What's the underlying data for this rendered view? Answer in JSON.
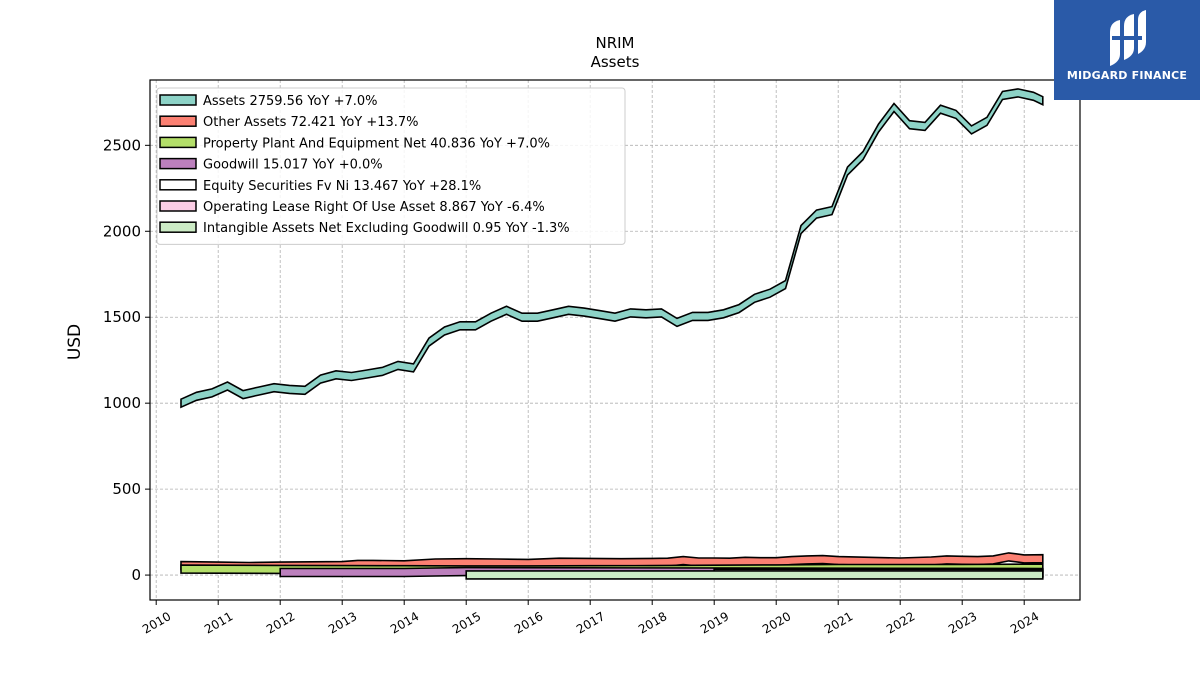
{
  "chart_data": {
    "type": "area",
    "title": "NRIM",
    "subtitle": "Assets",
    "xlabel": "",
    "ylabel": "USD",
    "xlim": [
      2009.9,
      2024.9
    ],
    "ylim": [
      -145,
      2880
    ],
    "x_ticks": [
      2010,
      2011,
      2012,
      2013,
      2014,
      2015,
      2016,
      2017,
      2018,
      2019,
      2020,
      2021,
      2022,
      2023,
      2024
    ],
    "y_ticks": [
      0,
      500,
      1000,
      1500,
      2000,
      2500
    ],
    "grid": true,
    "legend_position": "top-left",
    "series": [
      {
        "name": "Assets",
        "legend": "Assets  2759.56 YoY +7.0%",
        "color": "#8dd3c7",
        "x": [
          2010.4,
          2010.65,
          2010.9,
          2011.15,
          2011.4,
          2011.65,
          2011.9,
          2012.15,
          2012.4,
          2012.65,
          2012.9,
          2013.15,
          2013.4,
          2013.65,
          2013.9,
          2014.15,
          2014.4,
          2014.65,
          2014.9,
          2015.15,
          2015.4,
          2015.65,
          2015.9,
          2016.15,
          2016.4,
          2016.65,
          2016.9,
          2017.15,
          2017.4,
          2017.65,
          2017.9,
          2018.15,
          2018.4,
          2018.65,
          2018.9,
          2019.15,
          2019.4,
          2019.65,
          2019.9,
          2020.15,
          2020.4,
          2020.65,
          2020.9,
          2021.15,
          2021.4,
          2021.65,
          2021.9,
          2022.15,
          2022.4,
          2022.65,
          2022.9,
          2023.15,
          2023.4,
          2023.65,
          2023.9,
          2024.15,
          2024.3
        ],
        "values": [
          1000,
          1040,
          1060,
          1100,
          1050,
          1070,
          1090,
          1080,
          1075,
          1140,
          1165,
          1155,
          1170,
          1185,
          1220,
          1205,
          1355,
          1420,
          1450,
          1450,
          1500,
          1540,
          1500,
          1500,
          1520,
          1540,
          1530,
          1515,
          1500,
          1525,
          1520,
          1525,
          1470,
          1505,
          1505,
          1520,
          1550,
          1610,
          1640,
          1690,
          2010,
          2100,
          2120,
          2350,
          2440,
          2600,
          2720,
          2620,
          2610,
          2710,
          2680,
          2590,
          2640,
          2790,
          2805,
          2785,
          2759.56
        ]
      },
      {
        "name": "Other Assets",
        "legend": "Other Assets  72.421 YoY +13.7%",
        "color": "#fb8072",
        "x": [
          2010.4,
          2011.0,
          2011.5,
          2012.0,
          2012.5,
          2013.0,
          2013.25,
          2013.5,
          2014.0,
          2014.5,
          2015.0,
          2015.5,
          2016.0,
          2016.5,
          2017.0,
          2017.5,
          2018.0,
          2018.25,
          2018.5,
          2018.75,
          2019.0,
          2019.25,
          2019.5,
          2019.75,
          2020.0,
          2020.25,
          2020.5,
          2020.75,
          2021.0,
          2021.5,
          2022.0,
          2022.5,
          2022.75,
          2023.0,
          2023.25,
          2023.5,
          2023.75,
          2024.0,
          2024.3
        ],
        "values": [
          55,
          52,
          50,
          52,
          54,
          55,
          62,
          62,
          60,
          70,
          72,
          70,
          68,
          75,
          74,
          72,
          74,
          75,
          84,
          76,
          76,
          75,
          80,
          78,
          78,
          84,
          88,
          90,
          84,
          80,
          76,
          82,
          88,
          86,
          84,
          88,
          106,
          94,
          95
        ]
      },
      {
        "name": "Property Plant And Equipment Net",
        "legend": "Property Plant And Equipment Net  40.836 YoY +7.0%",
        "color": "#b3de69",
        "x": [
          2010.4,
          2011.0,
          2012.0,
          2013.0,
          2014.0,
          2015.0,
          2016.0,
          2017.0,
          2018.0,
          2019.0,
          2020.0,
          2021.0,
          2022.0,
          2023.0,
          2024.3
        ],
        "values": [
          35,
          34,
          33,
          32,
          31,
          30,
          30,
          31,
          32,
          34,
          36,
          38,
          38,
          38,
          40.836
        ]
      },
      {
        "name": "Goodwill",
        "legend": "Goodwill  15.017 YoY +0.0%",
        "color": "#bc80bd",
        "x": [
          2012.0,
          2014.0,
          2014.5,
          2015.0,
          2024.3
        ],
        "values": [
          15,
          15,
          18,
          20,
          15.017
        ]
      },
      {
        "name": "Equity Securities Fv Ni",
        "legend": "Equity Securities Fv Ni  13.467 YoY +28.1%",
        "color": "#ffffff",
        "x": [
          2019.0,
          2020.0,
          2021.0,
          2022.0,
          2023.0,
          2024.3
        ],
        "values": [
          9,
          10,
          11,
          11,
          10.5,
          13.467
        ]
      },
      {
        "name": "Operating Lease Right Of Use Asset",
        "legend": "Operating Lease Right Of Use Asset  8.867 YoY -6.4%",
        "color": "#fccde5",
        "x": [
          2019.0,
          2020.0,
          2021.0,
          2022.0,
          2023.0,
          2024.3
        ],
        "values": [
          11,
          10.5,
          10,
          9.8,
          9.4,
          8.867
        ]
      },
      {
        "name": "Intangible Assets Net Excluding Goodwill",
        "legend": "Intangible Assets Net Excluding Goodwill  0.95 YoY -1.3%",
        "color": "#ccebc5",
        "x": [
          2015.0,
          2018.0,
          2021.0,
          2024.3
        ],
        "values": [
          1.2,
          1.1,
          1.0,
          0.95
        ]
      }
    ]
  },
  "logo": {
    "text": "MIDGARD FINANCE",
    "background": "#2a5aa8",
    "icon": "midgard-logo-icon"
  }
}
